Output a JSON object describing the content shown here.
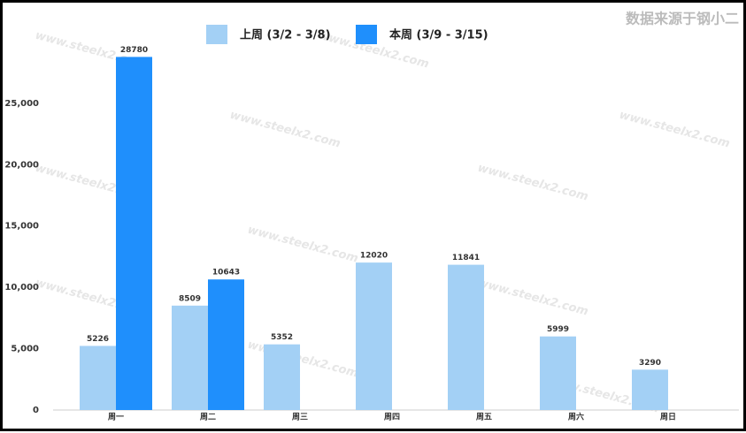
{
  "chart_data": {
    "type": "bar",
    "source_note": "数据来源于钢小二",
    "watermark": "www.steelx2.com",
    "categories": [
      "周一",
      "周二",
      "周三",
      "周四",
      "周五",
      "周六",
      "周日"
    ],
    "series": [
      {
        "name": "上周 (3/2 - 3/8)",
        "color": "#a3d0f5",
        "values": [
          5226,
          8509,
          5352,
          12020,
          11841,
          5999,
          3290
        ]
      },
      {
        "name": "本周 (3/9 - 3/15)",
        "color": "#1f8ffc",
        "values": [
          28780,
          10643,
          null,
          null,
          null,
          null,
          null
        ]
      }
    ],
    "ylim": [
      0,
      32700
    ],
    "yticks": [
      0,
      {
        "value": 5000,
        "label": "5,000"
      },
      {
        "value": 10000,
        "label": "10,000"
      },
      {
        "value": 15000,
        "label": "15,000"
      },
      {
        "value": 20000,
        "label": "20,000"
      },
      {
        "value": 25000,
        "label": "25,000"
      }
    ],
    "grid": false,
    "legend": "top"
  }
}
